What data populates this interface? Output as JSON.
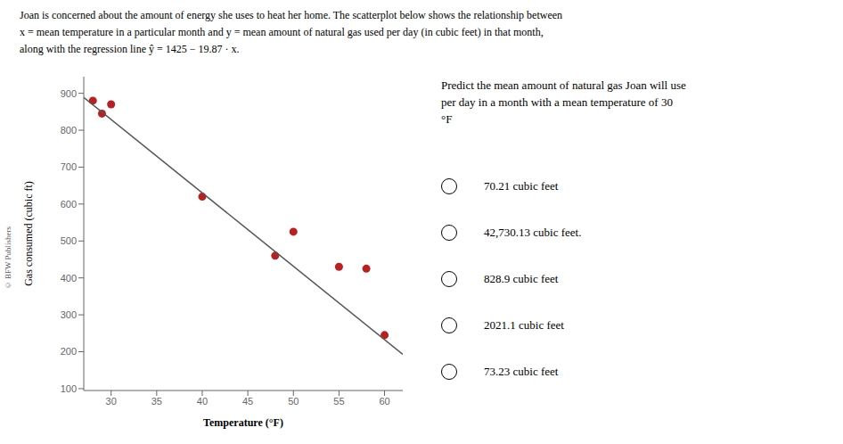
{
  "chart_data": {
    "type": "scatter",
    "title": "Joan is concerned about the amount of energy she uses to heat her home. The scatterplot below shows the relationship between\nx = mean temperature in a particular month and y = mean amount of natural gas used per day (in cubic feet) in that month,\nalong with the regression line ŷ = 1425 − 19.87 · x.",
    "x_label": "Temperature (°F)",
    "y_label": "Gas consumed (cubic ft)",
    "series": [
      {
        "type": "scatter",
        "color": "#bb2020",
        "x": [
          28,
          29,
          30,
          40,
          48,
          50,
          55,
          58,
          60
        ],
        "values": [
          880,
          845,
          870,
          620,
          460,
          525,
          430,
          425,
          245
        ]
      },
      {
        "type": "line",
        "color": "#555555",
        "x": [
          27,
          62
        ],
        "values": [
          888.51,
          193.06
        ]
      }
    ],
    "xlim": [
      27,
      62
    ],
    "ylim": [
      95,
      945
    ],
    "xticks": [
      30,
      35,
      40,
      45,
      50,
      55,
      60
    ],
    "yticks": [
      100,
      200,
      300,
      400,
      500,
      600,
      700,
      800,
      900
    ],
    "grid": false,
    "annotations": [
      "© BFW Publishers",
      "Predict the mean amount of natural gas Joan will use\nper day in a month with a mean temperature of 30\n°F",
      "70.21 cubic feet",
      "42,730.13 cubic feet.",
      "828.9 cubic feet",
      "2021.1 cubic feet",
      "73.23 cubic feet"
    ]
  }
}
